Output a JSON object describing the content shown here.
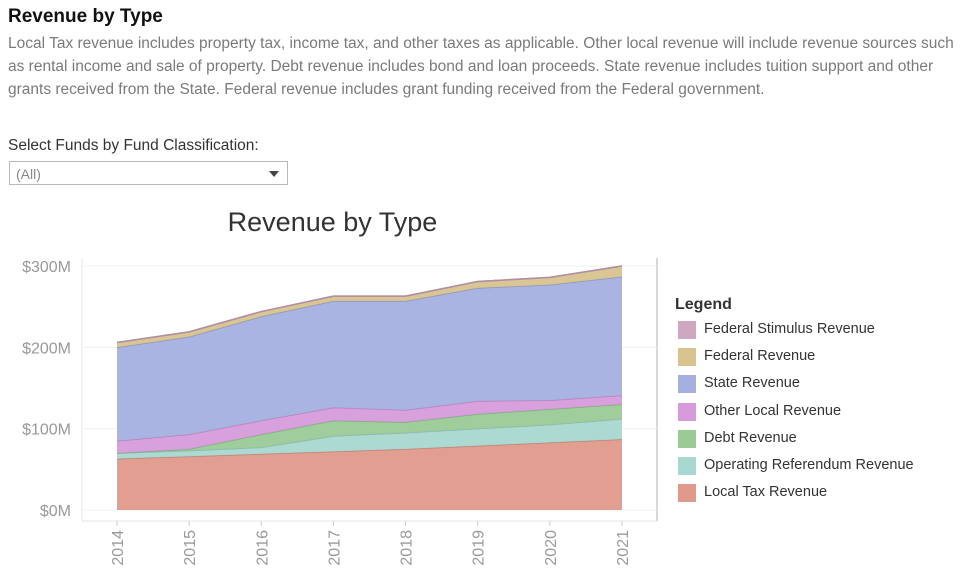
{
  "page": {
    "title": "Revenue by Type",
    "description": "Local Tax revenue includes property tax, income tax, and other taxes as applicable. Other local revenue will include revenue sources such as rental income and sale of property. Debt revenue includes bond and loan proceeds. State revenue includes tuition support and other grants received from the State. Federal revenue includes grant funding received from the Federal government."
  },
  "filter": {
    "label": "Select Funds by Fund Classification:",
    "value": "(All)"
  },
  "legend": {
    "title": "Legend"
  },
  "chart_data": {
    "type": "area",
    "stacked": true,
    "title": "Revenue by Type",
    "x": [
      "2014",
      "2015",
      "2016",
      "2017",
      "2018",
      "2019",
      "2020",
      "2021"
    ],
    "ylim": [
      0,
      300
    ],
    "y_ticks": [
      0,
      100,
      200,
      300
    ],
    "y_tick_labels": [
      "$0M",
      "$100M",
      "$200M",
      "$300M"
    ],
    "legend_position": "right",
    "grid": true,
    "series": [
      {
        "name": "Local Tax Revenue",
        "color": "#e0998a",
        "values": [
          63,
          66,
          69,
          72,
          75,
          79,
          83,
          87
        ]
      },
      {
        "name": "Operating Referendum Revenue",
        "color": "#a9d7d1",
        "values": [
          7,
          7,
          8,
          19,
          20,
          21,
          22,
          25
        ]
      },
      {
        "name": "Debt Revenue",
        "color": "#9acb97",
        "values": [
          0,
          2,
          16,
          19,
          13,
          18,
          19,
          18
        ]
      },
      {
        "name": "Other Local Revenue",
        "color": "#d79bdc",
        "values": [
          15,
          18,
          17,
          16,
          15,
          16,
          11,
          11
        ]
      },
      {
        "name": "State Revenue",
        "color": "#a5b0e0",
        "values": [
          115,
          120,
          128,
          131,
          134,
          139,
          142,
          146
        ]
      },
      {
        "name": "Federal Revenue",
        "color": "#d8c38e",
        "values": [
          6,
          6,
          6,
          6,
          6,
          8,
          9,
          13
        ]
      },
      {
        "name": "Federal Stimulus Revenue",
        "color": "#cfa7c0",
        "values": [
          0,
          0,
          0,
          0,
          0,
          0,
          0,
          0
        ]
      }
    ]
  }
}
